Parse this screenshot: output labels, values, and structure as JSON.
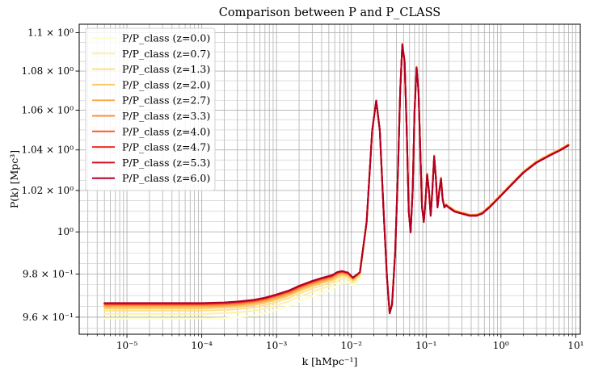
{
  "chart_data": {
    "type": "line",
    "title": "Comparison between P and P_CLASS",
    "xlabel": "k [hMpc⁻¹]",
    "ylabel": "P(k) [Mpc³]",
    "xscale": "log",
    "yscale": "log",
    "xlim": [
      2.3e-06,
      11.5
    ],
    "ylim": [
      0.9522,
      1.1045
    ],
    "grid": true,
    "minor_grid": true,
    "legend_position": "upper-left",
    "x_ticks": [
      {
        "value": 1e-05,
        "label": "10⁻⁵"
      },
      {
        "value": 0.0001,
        "label": "10⁻⁴"
      },
      {
        "value": 0.001,
        "label": "10⁻³"
      },
      {
        "value": 0.01,
        "label": "10⁻²"
      },
      {
        "value": 0.1,
        "label": "10⁻¹"
      },
      {
        "value": 1,
        "label": "10⁰"
      },
      {
        "value": 10,
        "label": "10¹"
      }
    ],
    "y_ticks": [
      {
        "value": 0.96,
        "label": "9.6 × 10⁻¹"
      },
      {
        "value": 0.98,
        "label": "9.8 × 10⁻¹"
      },
      {
        "value": 1.0,
        "label": "10⁰"
      },
      {
        "value": 1.02,
        "label": "1.02 × 10⁰"
      },
      {
        "value": 1.04,
        "label": "1.04 × 10⁰"
      },
      {
        "value": 1.06,
        "label": "1.06 × 10⁰"
      },
      {
        "value": 1.08,
        "label": "1.08 × 10⁰"
      },
      {
        "value": 1.1,
        "label": "1.1 × 10⁰"
      }
    ],
    "base_curve": {
      "x": [
        5e-06,
        1e-05,
        5e-05,
        0.0001,
        0.0002,
        0.0003,
        0.0005,
        0.0007,
        0.001,
        0.0015,
        0.002,
        0.003,
        0.004,
        0.0055,
        0.0065,
        0.0075,
        0.009,
        0.0105,
        0.013,
        0.016,
        0.019,
        0.0215,
        0.024,
        0.027,
        0.03,
        0.0325,
        0.035,
        0.0385,
        0.042,
        0.045,
        0.048,
        0.0515,
        0.055,
        0.0585,
        0.062,
        0.066,
        0.07,
        0.0745,
        0.079,
        0.0835,
        0.088,
        0.093,
        0.098,
        0.103,
        0.109,
        0.115,
        0.121,
        0.128,
        0.135,
        0.142,
        0.15,
        0.158,
        0.166,
        0.175,
        0.185,
        0.2,
        0.24,
        0.3,
        0.38,
        0.47,
        0.56,
        0.7,
        0.9,
        1.3,
        2,
        3,
        4.5,
        6.5,
        8
      ],
      "y": [
        0.9665,
        0.9665,
        0.9665,
        0.9665,
        0.9668,
        0.9672,
        0.968,
        0.969,
        0.9705,
        0.9725,
        0.9745,
        0.9768,
        0.9782,
        0.9795,
        0.981,
        0.9815,
        0.9808,
        0.9785,
        0.981,
        1.005,
        1.05,
        1.065,
        1.05,
        1.01,
        0.978,
        0.962,
        0.966,
        0.99,
        1.03,
        1.07,
        1.094,
        1.085,
        1.05,
        1.01,
        1.0,
        1.02,
        1.06,
        1.082,
        1.07,
        1.04,
        1.012,
        1.005,
        1.015,
        1.028,
        1.02,
        1.008,
        1.02,
        1.037,
        1.026,
        1.012,
        1.02,
        1.026,
        1.016,
        1.012,
        1.013,
        1.012,
        1.01,
        1.009,
        1.008,
        1.008,
        1.009,
        1.012,
        1.016,
        1.022,
        1.029,
        1.034,
        1.0375,
        1.0405,
        1.0425
      ]
    },
    "series": [
      {
        "name": "P/P_class (z=0.0)",
        "color": "#ffffcc",
        "lowk_offset": -0.0072,
        "hik_offset": 0.0006
      },
      {
        "name": "P/P_class (z=0.7)",
        "color": "#fff0a8",
        "lowk_offset": -0.005,
        "hik_offset": 0.0005
      },
      {
        "name": "P/P_class (z=1.3)",
        "color": "#fee087",
        "lowk_offset": -0.0035,
        "hik_offset": 0.0004
      },
      {
        "name": "P/P_class (z=2.0)",
        "color": "#fec965",
        "lowk_offset": -0.0024,
        "hik_offset": 0.0003
      },
      {
        "name": "P/P_class (z=2.7)",
        "color": "#feab49",
        "lowk_offset": -0.0016,
        "hik_offset": 0.0002
      },
      {
        "name": "P/P_class (z=3.3)",
        "color": "#fd8c3c",
        "lowk_offset": -0.001,
        "hik_offset": 0.0001
      },
      {
        "name": "P/P_class (z=4.0)",
        "color": "#fc5b2e",
        "lowk_offset": -0.0006,
        "hik_offset": 0.0
      },
      {
        "name": "P/P_class (z=4.7)",
        "color": "#ed2e21",
        "lowk_offset": -0.0003,
        "hik_offset": -0.0001
      },
      {
        "name": "P/P_class (z=5.3)",
        "color": "#d41020",
        "lowk_offset": -0.0001,
        "hik_offset": -0.0002
      },
      {
        "name": "P/P_class (z=6.0)",
        "color": "#b00026",
        "lowk_offset": 0.0,
        "hik_offset": -0.0003
      }
    ]
  }
}
